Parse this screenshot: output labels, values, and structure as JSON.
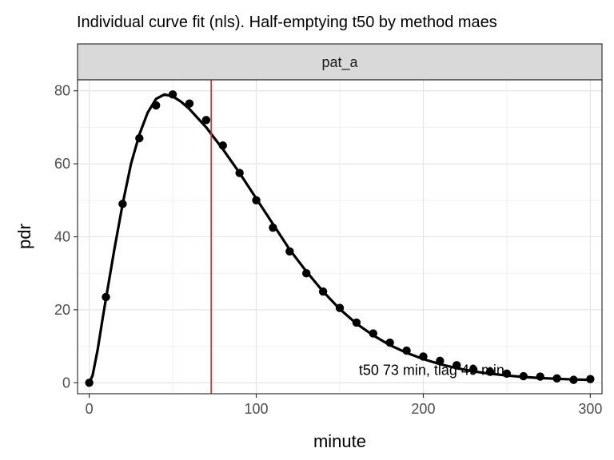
{
  "chart_data": {
    "type": "scatter",
    "title": "Individual curve fit (nls). Half-emptying t50 by method maes",
    "facet_label": "pat_a",
    "xlabel": "minute",
    "ylabel": "pdr",
    "xlim": [
      -7,
      307
    ],
    "ylim": [
      -3,
      83
    ],
    "x_ticks": [
      0,
      100,
      200,
      300
    ],
    "y_ticks": [
      0,
      20,
      40,
      60,
      80
    ],
    "grid": true,
    "series": [
      {
        "kind": "points",
        "x": [
          0,
          10,
          20,
          30,
          40,
          50,
          60,
          70,
          80,
          90,
          100,
          110,
          120,
          130,
          140,
          150,
          160,
          170,
          180,
          190,
          200,
          210,
          220,
          230,
          240,
          250,
          260,
          270,
          280,
          290,
          300
        ],
        "values": [
          0,
          23.5,
          49,
          67,
          76,
          79,
          76.5,
          72,
          65,
          57.5,
          50,
          42.5,
          36,
          30,
          25,
          20.5,
          16.5,
          13.5,
          11,
          8.8,
          7.2,
          6,
          4.8,
          3.6,
          3,
          2.5,
          1.8,
          1.7,
          1.2,
          0.8,
          1
        ]
      },
      {
        "kind": "fitted-curve",
        "x": [
          0,
          2,
          5,
          8,
          10,
          15,
          20,
          25,
          30,
          35,
          40,
          45,
          50,
          55,
          60,
          65,
          70,
          75,
          80,
          90,
          100,
          110,
          120,
          130,
          140,
          150,
          160,
          170,
          180,
          190,
          200,
          210,
          220,
          230,
          240,
          250,
          260,
          270,
          280,
          290,
          300
        ],
        "values": [
          0,
          2,
          9,
          17.5,
          23,
          36.5,
          49,
          60,
          68,
          74,
          77.8,
          79,
          78.5,
          77,
          75,
          72.5,
          70,
          67,
          64,
          57.5,
          50.5,
          43.5,
          36.5,
          30.5,
          25,
          20.2,
          16.2,
          13,
          10.3,
          8.2,
          6.5,
          5.1,
          4,
          3.1,
          2.5,
          2,
          1.6,
          1.3,
          1.1,
          0.9,
          0.8
        ]
      }
    ],
    "vline": {
      "x": 73,
      "color": "#d62728"
    },
    "annotation": {
      "text": "t50 73 min,  tlag 49 min",
      "x": 205,
      "y": 3.5
    }
  }
}
